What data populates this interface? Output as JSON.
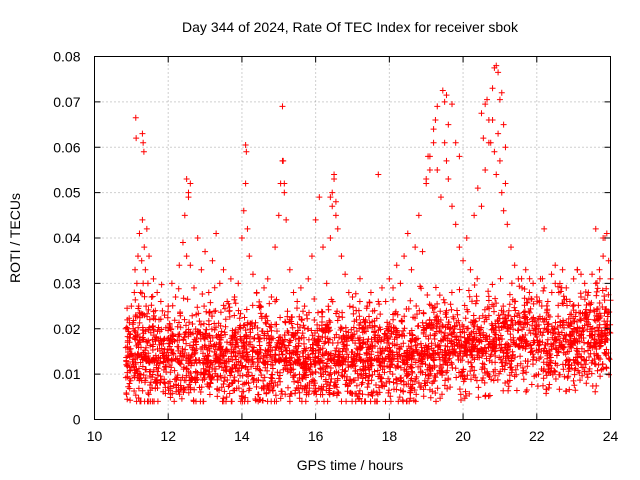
{
  "chart_data": {
    "type": "scatter",
    "title": "Day 344 of 2024, Rate Of TEC Index for receiver sbok",
    "xlabel": "GPS time / hours",
    "ylabel": "ROTI / TECUs",
    "xlim": [
      10,
      24
    ],
    "ylim": [
      0,
      0.08
    ],
    "x_ticks": [
      10,
      12,
      14,
      16,
      18,
      20,
      22,
      24
    ],
    "x_tick_labels": [
      "10",
      "12",
      "14",
      "16",
      "18",
      "20",
      "22",
      "24"
    ],
    "y_ticks": [
      0,
      0.01,
      0.02,
      0.03,
      0.04,
      0.05,
      0.06,
      0.07,
      0.08
    ],
    "y_tick_labels": [
      "0",
      "0.01",
      "0.02",
      "0.03",
      "0.04",
      "0.05",
      "0.06",
      "0.07",
      "0.08"
    ],
    "grid": true,
    "marker": "plus",
    "color": "#ff0000",
    "series": [
      {
        "name": "ROTI",
        "x": [
          10.85,
          10.9,
          10.95,
          11.0,
          11.05,
          11.08,
          11.1,
          11.12,
          11.15,
          11.18,
          11.2,
          11.22,
          11.25,
          11.28,
          11.3,
          11.32,
          11.35,
          11.38,
          11.4,
          11.42,
          11.45,
          11.48,
          11.5,
          11.55,
          11.6,
          11.65,
          11.7,
          11.75,
          11.8,
          11.9,
          12.0,
          12.1,
          12.2,
          12.3,
          12.4,
          12.45,
          12.5,
          12.55,
          12.6,
          12.7,
          12.8,
          12.9,
          13.0,
          13.1,
          13.2,
          13.3,
          13.4,
          13.5,
          13.6,
          13.7,
          13.8,
          13.9,
          14.0,
          14.05,
          14.1,
          14.15,
          14.2,
          14.3,
          14.4,
          14.5,
          14.6,
          14.7,
          14.8,
          14.9,
          15.0,
          15.05,
          15.1,
          15.15,
          15.2,
          15.3,
          15.4,
          15.5,
          15.6,
          15.7,
          15.8,
          15.9,
          16.0,
          16.1,
          16.2,
          16.3,
          16.4,
          16.45,
          16.5,
          16.55,
          16.6,
          16.7,
          16.8,
          16.9,
          17.0,
          17.1,
          17.2,
          17.3,
          17.4,
          17.5,
          17.6,
          17.7,
          17.8,
          17.9,
          18.0,
          18.1,
          18.2,
          18.3,
          18.4,
          18.5,
          18.6,
          18.7,
          18.8,
          18.9,
          19.0,
          19.1,
          19.2,
          19.3,
          19.4,
          19.5,
          19.55,
          19.6,
          19.7,
          19.8,
          19.9,
          20.0,
          20.1,
          20.2,
          20.3,
          20.4,
          20.5,
          20.6,
          20.7,
          20.8,
          20.85,
          20.9,
          20.95,
          21.0,
          21.05,
          21.1,
          21.15,
          21.2,
          21.3,
          21.4,
          21.5,
          21.6,
          21.7,
          21.8,
          21.9,
          22.0,
          22.1,
          22.2,
          22.3,
          22.4,
          22.5,
          22.6,
          22.7,
          22.8,
          22.9,
          23.0,
          23.1,
          23.2,
          23.3,
          23.4,
          23.5,
          23.6,
          23.7,
          23.8,
          23.9,
          23.95,
          24.0,
          11.12,
          11.13,
          11.3,
          11.32,
          11.34,
          12.5,
          12.55,
          12.6,
          14.1,
          14.12,
          15.1,
          15.12,
          15.15,
          16.4,
          16.45,
          16.5,
          16.55,
          17.7,
          19.0,
          19.05,
          19.1,
          19.2,
          19.25,
          19.3,
          19.45,
          19.5,
          19.55,
          19.6,
          19.7,
          19.8,
          19.9,
          20.5,
          20.55,
          20.6,
          20.65,
          20.7,
          20.75,
          20.8,
          20.85,
          20.9,
          20.95,
          21.0,
          21.05,
          21.1,
          21.15,
          23.6,
          23.8,
          23.85,
          22.2,
          22.5,
          23.1,
          23.2
        ],
        "y": [
          0.02,
          0.014,
          0.018,
          0.025,
          0.02,
          0.028,
          0.033,
          0.023,
          0.03,
          0.036,
          0.025,
          0.041,
          0.028,
          0.035,
          0.044,
          0.03,
          0.038,
          0.033,
          0.025,
          0.042,
          0.03,
          0.036,
          0.022,
          0.027,
          0.031,
          0.024,
          0.028,
          0.022,
          0.026,
          0.023,
          0.025,
          0.03,
          0.027,
          0.034,
          0.039,
          0.045,
          0.036,
          0.049,
          0.034,
          0.029,
          0.04,
          0.033,
          0.037,
          0.028,
          0.035,
          0.041,
          0.03,
          0.033,
          0.026,
          0.031,
          0.027,
          0.03,
          0.04,
          0.046,
          0.052,
          0.042,
          0.036,
          0.032,
          0.028,
          0.025,
          0.029,
          0.031,
          0.027,
          0.038,
          0.045,
          0.052,
          0.057,
          0.05,
          0.044,
          0.033,
          0.028,
          0.026,
          0.029,
          0.025,
          0.031,
          0.036,
          0.044,
          0.049,
          0.038,
          0.03,
          0.04,
          0.047,
          0.053,
          0.045,
          0.042,
          0.036,
          0.032,
          0.028,
          0.027,
          0.024,
          0.026,
          0.022,
          0.025,
          0.028,
          0.024,
          0.026,
          0.029,
          0.026,
          0.031,
          0.029,
          0.034,
          0.03,
          0.036,
          0.041,
          0.033,
          0.038,
          0.045,
          0.037,
          0.052,
          0.058,
          0.064,
          0.055,
          0.049,
          0.061,
          0.057,
          0.053,
          0.047,
          0.043,
          0.038,
          0.035,
          0.04,
          0.033,
          0.045,
          0.051,
          0.047,
          0.055,
          0.061,
          0.066,
          0.059,
          0.054,
          0.063,
          0.057,
          0.05,
          0.046,
          0.052,
          0.043,
          0.038,
          0.034,
          0.031,
          0.029,
          0.033,
          0.028,
          0.03,
          0.027,
          0.031,
          0.029,
          0.026,
          0.032,
          0.03,
          0.028,
          0.033,
          0.029,
          0.026,
          0.031,
          0.033,
          0.027,
          0.03,
          0.028,
          0.032,
          0.03,
          0.033,
          0.036,
          0.041,
          0.035,
          0.031,
          0.0665,
          0.062,
          0.063,
          0.061,
          0.059,
          0.053,
          0.05,
          0.052,
          0.0605,
          0.059,
          0.069,
          0.057,
          0.052,
          0.049,
          0.05,
          0.054,
          0.048,
          0.054,
          0.053,
          0.058,
          0.055,
          0.061,
          0.066,
          0.069,
          0.0725,
          0.07,
          0.0715,
          0.065,
          0.0695,
          0.061,
          0.058,
          0.0675,
          0.062,
          0.0695,
          0.0705,
          0.066,
          0.061,
          0.073,
          0.0775,
          0.078,
          0.0765,
          0.0705,
          0.072,
          0.065,
          0.06,
          0.042,
          0.04,
          0.04,
          0.042,
          0.034,
          0.033,
          0.032
        ]
      }
    ]
  }
}
